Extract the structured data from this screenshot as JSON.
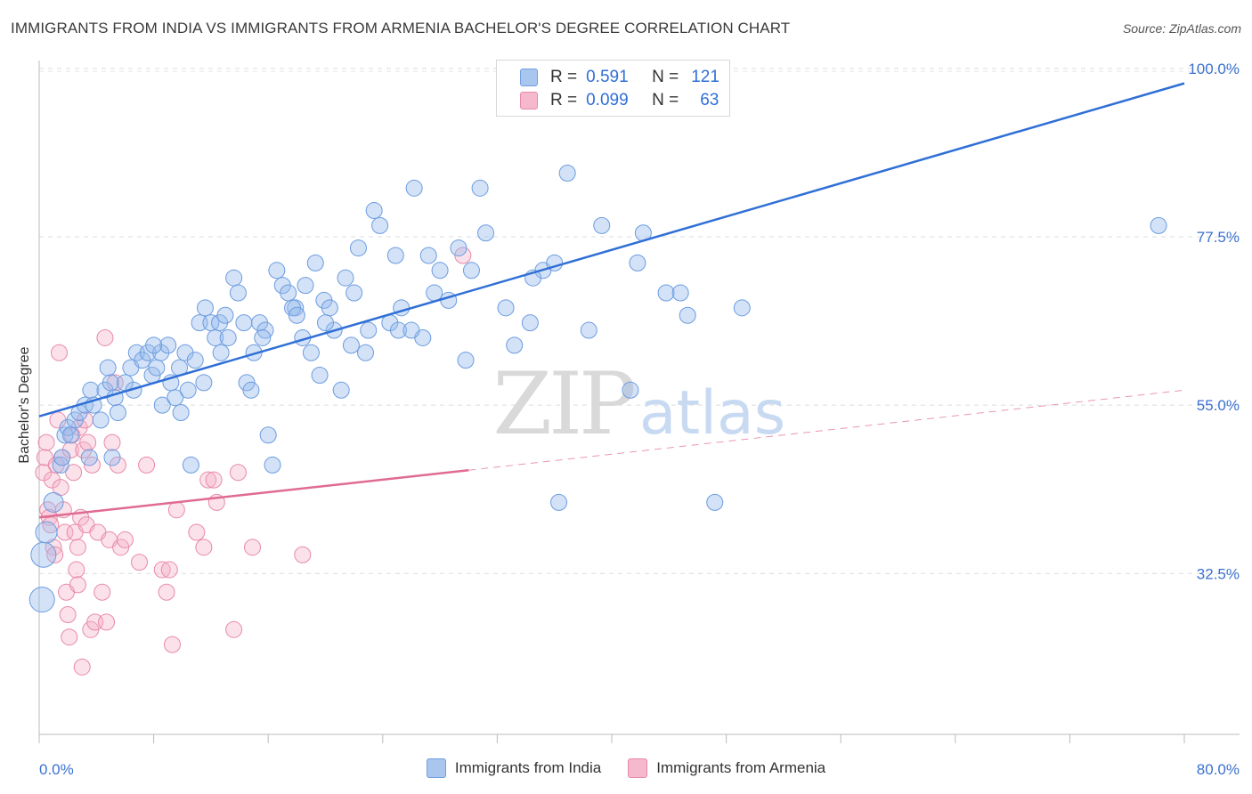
{
  "title": "IMMIGRANTS FROM INDIA VS IMMIGRANTS FROM ARMENIA BACHELOR'S DEGREE CORRELATION CHART",
  "source": "Source: ZipAtlas.com",
  "watermark": {
    "zip": "ZIP",
    "atlas": "atlas"
  },
  "legend_top": {
    "rows": [
      {
        "r_label": "R =",
        "r_value": "0.591",
        "n_label": "N =",
        "n_value": "121",
        "color": "#a9c6ef",
        "border": "#6f9fdf"
      },
      {
        "r_label": "R =",
        "r_value": "0.099",
        "n_label": "N =",
        "n_value": "63",
        "color": "#f6b8cc",
        "border": "#e88aa8"
      }
    ]
  },
  "legend_bottom": {
    "items": [
      {
        "label": "Immigrants from India",
        "color": "#a9c6ef",
        "border": "#6f9fdf"
      },
      {
        "label": "Immigrants from Armenia",
        "color": "#f6b8cc",
        "border": "#e88aa8"
      }
    ]
  },
  "chart_data": {
    "type": "scatter",
    "title": "IMMIGRANTS FROM INDIA VS IMMIGRANTS FROM ARMENIA BACHELOR'S DEGREE CORRELATION CHART",
    "xlabel": "",
    "ylabel": "Bachelor's Degree",
    "xlim": [
      0,
      80
    ],
    "ylim": [
      11,
      102
    ],
    "x_tick_labels": [
      "0.0%",
      "80.0%"
    ],
    "y_ticks": [
      32.5,
      55.0,
      77.5,
      100.0
    ],
    "y_tick_labels": [
      "32.5%",
      "55.0%",
      "77.5%",
      "100.0%"
    ],
    "grid": true,
    "legend_position": "top-center",
    "colors": {
      "india": "#2f6fd6",
      "armenia": "#e06a93"
    },
    "series": [
      {
        "name": "Immigrants from India",
        "r": 0.591,
        "n": 121,
        "trend": {
          "x0": 0,
          "y0": 53.5,
          "x1": 80,
          "y1": 98
        },
        "points": [
          [
            0.2,
            29,
            14
          ],
          [
            0.3,
            35,
            14
          ],
          [
            0.5,
            38,
            12
          ],
          [
            1.0,
            42,
            11
          ],
          [
            1.5,
            47,
            9
          ],
          [
            1.6,
            48,
            9
          ],
          [
            1.8,
            51,
            9
          ],
          [
            2.0,
            52,
            9
          ],
          [
            2.2,
            51,
            9
          ],
          [
            2.5,
            53,
            9
          ],
          [
            2.8,
            54,
            9
          ],
          [
            3.2,
            55,
            9
          ],
          [
            3.6,
            57,
            9
          ],
          [
            3.8,
            55,
            9
          ],
          [
            4.3,
            53,
            9
          ],
          [
            4.6,
            57,
            9
          ],
          [
            5.0,
            58,
            9
          ],
          [
            5.1,
            48,
            9
          ],
          [
            5.3,
            56,
            9
          ],
          [
            5.5,
            54,
            9
          ],
          [
            6.0,
            58,
            9
          ],
          [
            6.4,
            60,
            9
          ],
          [
            6.8,
            62,
            9
          ],
          [
            7.2,
            61,
            9
          ],
          [
            7.6,
            62,
            9
          ],
          [
            7.9,
            59,
            9
          ],
          [
            8.2,
            60,
            9
          ],
          [
            8.5,
            62,
            9
          ],
          [
            8.6,
            55,
            9
          ],
          [
            9.0,
            63,
            9
          ],
          [
            9.2,
            58,
            9
          ],
          [
            9.5,
            56,
            9
          ],
          [
            9.8,
            60,
            9
          ],
          [
            10.2,
            62,
            9
          ],
          [
            10.4,
            57,
            9
          ],
          [
            10.6,
            47,
            9
          ],
          [
            10.9,
            61,
            9
          ],
          [
            11.2,
            66,
            9
          ],
          [
            11.6,
            68,
            9
          ],
          [
            12.0,
            66,
            9
          ],
          [
            12.3,
            64,
            9
          ],
          [
            12.6,
            66,
            9
          ],
          [
            13.0,
            67,
            9
          ],
          [
            13.2,
            64,
            9
          ],
          [
            13.6,
            72,
            9
          ],
          [
            13.9,
            70,
            9
          ],
          [
            14.3,
            66,
            9
          ],
          [
            14.5,
            58,
            9
          ],
          [
            14.8,
            57,
            9
          ],
          [
            15.0,
            62,
            9
          ],
          [
            15.4,
            66,
            9
          ],
          [
            15.8,
            65,
            9
          ],
          [
            16.0,
            51,
            9
          ],
          [
            16.3,
            47,
            9
          ],
          [
            16.6,
            73,
            9
          ],
          [
            17.0,
            71,
            9
          ],
          [
            17.4,
            70,
            9
          ],
          [
            17.9,
            68,
            9
          ],
          [
            18.4,
            64,
            9
          ],
          [
            18.6,
            71,
            9
          ],
          [
            19.0,
            62,
            9
          ],
          [
            19.3,
            74,
            9
          ],
          [
            19.6,
            59,
            9
          ],
          [
            19.9,
            69,
            9
          ],
          [
            20.3,
            68,
            9
          ],
          [
            20.6,
            65,
            9
          ],
          [
            21.1,
            57,
            9
          ],
          [
            21.4,
            72,
            9
          ],
          [
            22.0,
            70,
            9
          ],
          [
            22.3,
            76,
            9
          ],
          [
            22.8,
            62,
            9
          ],
          [
            23.0,
            65,
            9
          ],
          [
            23.4,
            81,
            9
          ],
          [
            23.8,
            79,
            9
          ],
          [
            24.5,
            66,
            9
          ],
          [
            24.9,
            75,
            9
          ],
          [
            25.1,
            65,
            9
          ],
          [
            25.3,
            68,
            9
          ],
          [
            26.2,
            84,
            9
          ],
          [
            26.8,
            64,
            9
          ],
          [
            27.2,
            75,
            9
          ],
          [
            28.0,
            73,
            9
          ],
          [
            28.6,
            69,
            9
          ],
          [
            29.3,
            76,
            9
          ],
          [
            29.8,
            61,
            9
          ],
          [
            30.2,
            73,
            9
          ],
          [
            30.8,
            84,
            9
          ],
          [
            31.2,
            78,
            9
          ],
          [
            32.6,
            68,
            9
          ],
          [
            33.2,
            63,
            9
          ],
          [
            34.3,
            66,
            9
          ],
          [
            35.2,
            73,
            9
          ],
          [
            36.0,
            74,
            9
          ],
          [
            36.3,
            42,
            9
          ],
          [
            36.9,
            86,
            9
          ],
          [
            38.4,
            65,
            9
          ],
          [
            39.3,
            79,
            9
          ],
          [
            41.3,
            57,
            9
          ],
          [
            41.8,
            74,
            9
          ],
          [
            42.2,
            78,
            9
          ],
          [
            43.8,
            70,
            9
          ],
          [
            44.8,
            70,
            9
          ],
          [
            45.3,
            67,
            9
          ],
          [
            47.2,
            42,
            9
          ],
          [
            49.1,
            68,
            9
          ],
          [
            78.2,
            79,
            9
          ],
          [
            11.5,
            58,
            9
          ],
          [
            17.7,
            68,
            9
          ],
          [
            21.8,
            63,
            9
          ],
          [
            12.7,
            62,
            9
          ],
          [
            8.0,
            63,
            9
          ],
          [
            15.6,
            64,
            9
          ],
          [
            18.0,
            67,
            9
          ],
          [
            26.0,
            65,
            9
          ],
          [
            27.6,
            70,
            9
          ],
          [
            34.5,
            72,
            9
          ],
          [
            20.0,
            66,
            9
          ],
          [
            4.8,
            60,
            9
          ],
          [
            9.9,
            54,
            9
          ],
          [
            6.6,
            57,
            9
          ],
          [
            3.5,
            48,
            9
          ]
        ]
      },
      {
        "name": "Immigrants from Armenia",
        "r": 0.099,
        "n": 63,
        "trend": {
          "x0": 0,
          "y0": 40,
          "x1": 30,
          "y1": 46.3,
          "dash_to_x": 80,
          "dash_to_y": 57
        },
        "points": [
          [
            0.3,
            46,
            9
          ],
          [
            0.4,
            48,
            9
          ],
          [
            0.5,
            50,
            9
          ],
          [
            0.6,
            41,
            9
          ],
          [
            0.7,
            40,
            9
          ],
          [
            0.8,
            39,
            9
          ],
          [
            0.9,
            45,
            9
          ],
          [
            1.0,
            36,
            9
          ],
          [
            1.1,
            35,
            9
          ],
          [
            1.2,
            47,
            9
          ],
          [
            1.3,
            53,
            9
          ],
          [
            1.4,
            62,
            9
          ],
          [
            1.5,
            44,
            9
          ],
          [
            1.6,
            48,
            9
          ],
          [
            1.7,
            41,
            9
          ],
          [
            1.8,
            38,
            9
          ],
          [
            1.9,
            30,
            9
          ],
          [
            2.0,
            27,
            9
          ],
          [
            2.1,
            24,
            9
          ],
          [
            2.2,
            49,
            9
          ],
          [
            2.3,
            51,
            9
          ],
          [
            2.4,
            46,
            9
          ],
          [
            2.5,
            38,
            9
          ],
          [
            2.6,
            33,
            9
          ],
          [
            2.7,
            36,
            9
          ],
          [
            2.8,
            52,
            9
          ],
          [
            2.9,
            40,
            9
          ],
          [
            3.0,
            20,
            9
          ],
          [
            3.1,
            49,
            9
          ],
          [
            3.2,
            53,
            9
          ],
          [
            3.3,
            39,
            9
          ],
          [
            3.4,
            50,
            9
          ],
          [
            3.6,
            25,
            9
          ],
          [
            3.7,
            47,
            9
          ],
          [
            3.9,
            26,
            9
          ],
          [
            4.1,
            38,
            9
          ],
          [
            4.4,
            30,
            9
          ],
          [
            4.7,
            26,
            9
          ],
          [
            4.9,
            37,
            9
          ],
          [
            5.1,
            50,
            9
          ],
          [
            5.3,
            58,
            9
          ],
          [
            5.5,
            47,
            9
          ],
          [
            5.7,
            36,
            9
          ],
          [
            6.0,
            37,
            9
          ],
          [
            7.0,
            34,
            9
          ],
          [
            7.5,
            47,
            9
          ],
          [
            8.6,
            33,
            9
          ],
          [
            8.9,
            30,
            9
          ],
          [
            9.1,
            33,
            9
          ],
          [
            9.3,
            23,
            9
          ],
          [
            9.6,
            41,
            9
          ],
          [
            11.0,
            38,
            9
          ],
          [
            11.5,
            36,
            9
          ],
          [
            11.8,
            45,
            9
          ],
          [
            12.2,
            45,
            9
          ],
          [
            12.4,
            42,
            9
          ],
          [
            13.6,
            25,
            9
          ],
          [
            13.9,
            46,
            9
          ],
          [
            14.9,
            36,
            9
          ],
          [
            18.4,
            35,
            9
          ],
          [
            29.6,
            75,
            9
          ],
          [
            2.7,
            31,
            9
          ],
          [
            4.6,
            64,
            9
          ]
        ]
      }
    ]
  }
}
